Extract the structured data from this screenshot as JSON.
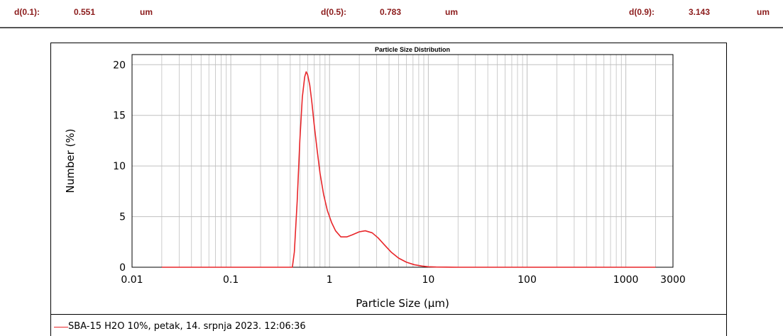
{
  "stats": [
    {
      "label": "d(0.1):",
      "value": "0.551",
      "unit": "um"
    },
    {
      "label": "d(0.5):",
      "value": "0.783",
      "unit": "um"
    },
    {
      "label": "d(0.9):",
      "value": "3.143",
      "unit": "um"
    }
  ],
  "legend": {
    "entry": "SBA-15 H2O 10%, petak, 14. srpnja 2023. 12:06:36"
  },
  "colors": {
    "stat_text": "#8b1a1a",
    "series": "#e8262a",
    "grid": "#c0c0c0"
  },
  "chart_data": {
    "type": "line",
    "title": "Particle Size Distribution",
    "xlabel": "Particle Size (µm)",
    "ylabel": "Number (%)",
    "x_scale": "log",
    "xlim": [
      0.01,
      3000
    ],
    "ylim": [
      0,
      21
    ],
    "grid": true,
    "legend_position": "bottom",
    "x_ticks": [
      {
        "value": 0.01,
        "label": "0.01"
      },
      {
        "value": 0.1,
        "label": "0.1"
      },
      {
        "value": 1,
        "label": "1"
      },
      {
        "value": 10,
        "label": "10"
      },
      {
        "value": 100,
        "label": "100"
      },
      {
        "value": 1000,
        "label": "1000"
      },
      {
        "value": 3000,
        "label": "3000"
      }
    ],
    "y_ticks": [
      {
        "value": 0,
        "label": "0"
      },
      {
        "value": 5,
        "label": "5"
      },
      {
        "value": 10,
        "label": "10"
      },
      {
        "value": 15,
        "label": "15"
      },
      {
        "value": 20,
        "label": "20"
      }
    ],
    "series": [
      {
        "name": "SBA-15 H2O 10%, petak, 14. srpnja 2023. 12:06:36",
        "x": [
          0.02,
          0.3,
          0.42,
          0.44,
          0.47,
          0.5,
          0.53,
          0.56,
          0.58,
          0.6,
          0.63,
          0.66,
          0.7,
          0.75,
          0.8,
          0.87,
          0.95,
          1.05,
          1.15,
          1.3,
          1.5,
          1.7,
          2.0,
          2.3,
          2.7,
          3.1,
          3.6,
          4.2,
          5.0,
          6.0,
          7.2,
          8.6,
          10,
          12,
          15,
          20,
          25,
          100,
          1000,
          2000
        ],
        "y": [
          0,
          0,
          0,
          1.5,
          6.5,
          12.5,
          16.8,
          18.8,
          19.3,
          19.0,
          18.0,
          16.4,
          14.0,
          11.5,
          9.3,
          7.2,
          5.6,
          4.4,
          3.6,
          3.0,
          3.0,
          3.2,
          3.5,
          3.6,
          3.4,
          2.9,
          2.2,
          1.5,
          0.9,
          0.5,
          0.25,
          0.12,
          0.05,
          0.02,
          0.01,
          0,
          0,
          0,
          0,
          0
        ]
      }
    ]
  }
}
